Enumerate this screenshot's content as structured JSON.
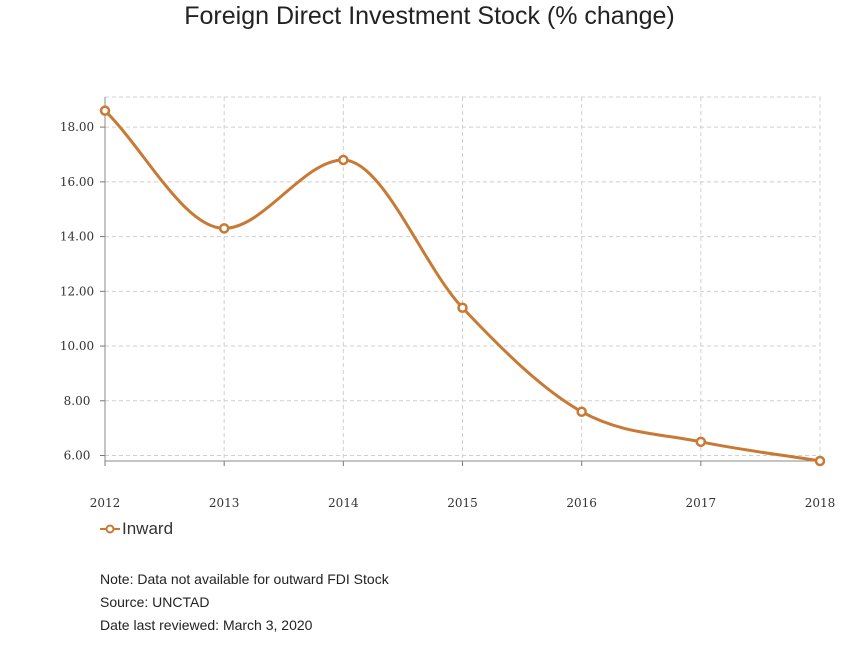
{
  "chart_data": {
    "type": "line",
    "title": "Foreign Direct Investment Stock (% change)",
    "xlabel": "",
    "ylabel": "",
    "categories": [
      "2012",
      "2013",
      "2014",
      "2015",
      "2016",
      "2017",
      "2018"
    ],
    "series": [
      {
        "name": "Inward",
        "values": [
          18.6,
          14.3,
          16.8,
          11.4,
          7.6,
          6.5,
          5.8
        ]
      }
    ],
    "yticks": [
      "6.00",
      "8.00",
      "10.00",
      "12.00",
      "14.00",
      "16.00",
      "18.00"
    ],
    "ylim": [
      5.8,
      19.1
    ],
    "grid": true,
    "legend_position": "bottom-left",
    "colors": {
      "Inward": "#c87a35"
    }
  },
  "notes": {
    "note": "Note: Data not available for outward FDI Stock",
    "source": "Source: UNCTAD",
    "reviewed": "Date last reviewed: March 3, 2020"
  }
}
